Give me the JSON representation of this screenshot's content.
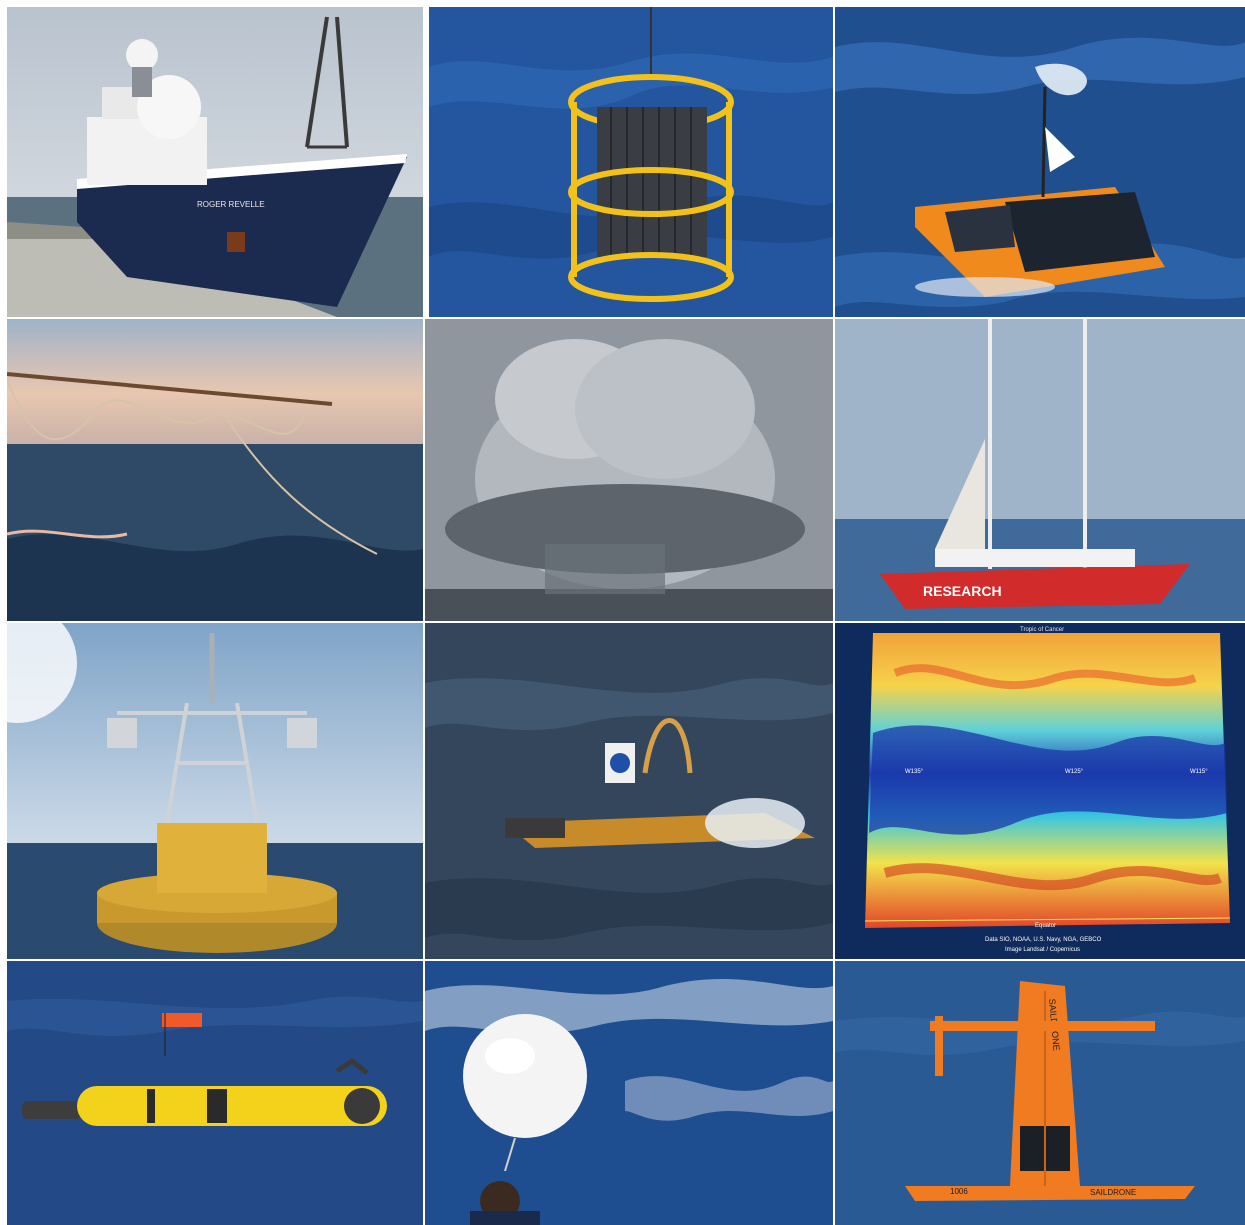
{
  "collage": {
    "tiles": [
      {
        "subject": "research-vessel-at-dock",
        "text": "ROGER REVELLE"
      },
      {
        "subject": "ctd-rosette-over-ocean",
        "text": ""
      },
      {
        "subject": "solar-wave-glider-at-sea",
        "text": ""
      },
      {
        "subject": "boom-line-trailing-into-waves",
        "text": ""
      },
      {
        "subject": "storm-cloud-over-sea",
        "text": ""
      },
      {
        "subject": "research-sailboat",
        "text": "RESEARCH"
      },
      {
        "subject": "moored-buoy-tower",
        "text": ""
      },
      {
        "subject": "small-autonomous-boat-splashing",
        "text": ""
      },
      {
        "subject": "sea-surface-temperature-map",
        "text_top": "Tropic of Cancer",
        "labels": [
          "W135°",
          "W125°",
          "W115°"
        ],
        "equator": "Equator",
        "credit_1": "Data SIO, NOAA, U.S. Navy, NGA, GEBCO",
        "credit_2": "Image Landsat / Copernicus"
      },
      {
        "subject": "yellow-underwater-glider-at-surface",
        "text": ""
      },
      {
        "subject": "weather-balloon-launch",
        "text": ""
      },
      {
        "subject": "orange-saildrone",
        "text_sail": "SAILDRONE",
        "text_hull": "SAILDRONE",
        "hull_number": "1006"
      }
    ]
  },
  "colors": {
    "ocean_deep": "#1f4a8c",
    "ocean_mid": "#2f64b0",
    "safety_orange": "#f07b20",
    "ctd_yellow": "#f2c21b",
    "sailboat_red": "#d22b2b",
    "sky_gray": "#c9ccd2"
  }
}
